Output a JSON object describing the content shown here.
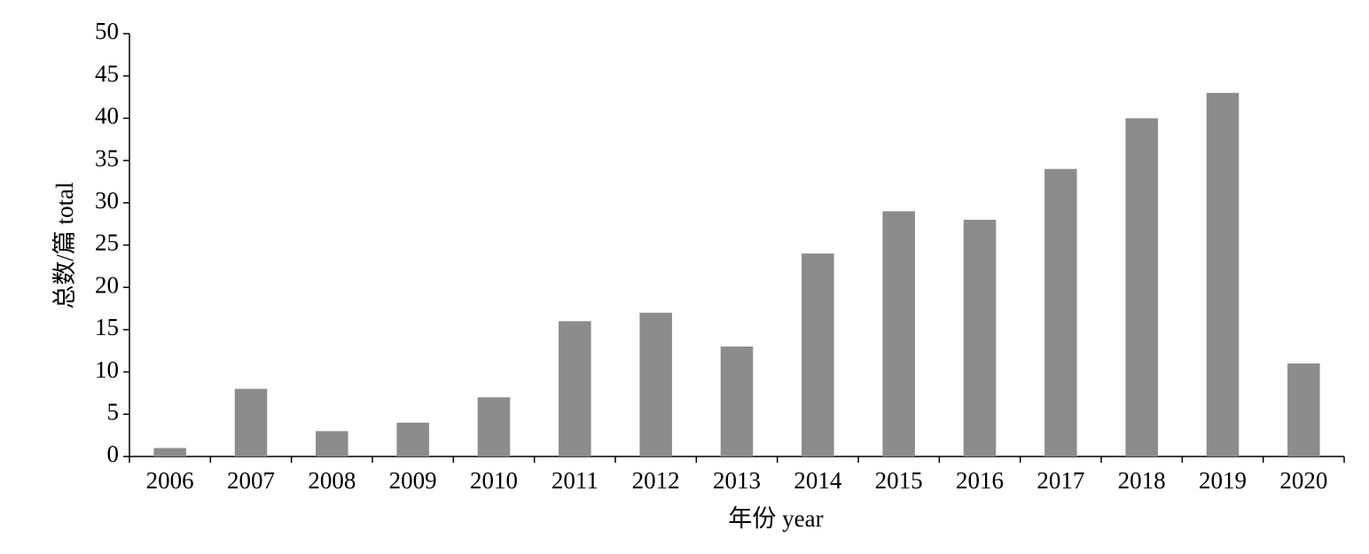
{
  "chart_data": {
    "type": "bar",
    "x_label": "年份 year",
    "y_label": "总数/篇 total",
    "categories": [
      "2006",
      "2007",
      "2008",
      "2009",
      "2010",
      "2011",
      "2012",
      "2013",
      "2014",
      "2015",
      "2016",
      "2017",
      "2018",
      "2019",
      "2020"
    ],
    "values": [
      1,
      8,
      3,
      4,
      7,
      16,
      17,
      13,
      24,
      29,
      28,
      34,
      40,
      43,
      11
    ],
    "color": "#8c8c8c",
    "ylim": [
      0,
      50
    ],
    "yticks": [
      0,
      5,
      10,
      15,
      20,
      25,
      30,
      35,
      40,
      45,
      50
    ],
    "grid": false
  }
}
